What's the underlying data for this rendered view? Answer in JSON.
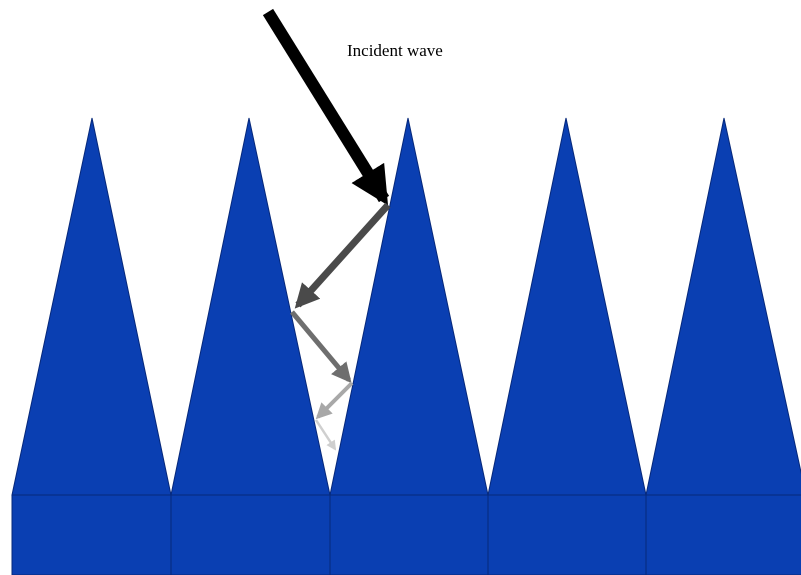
{
  "annotation": {
    "label": "Incident wave"
  }
}
